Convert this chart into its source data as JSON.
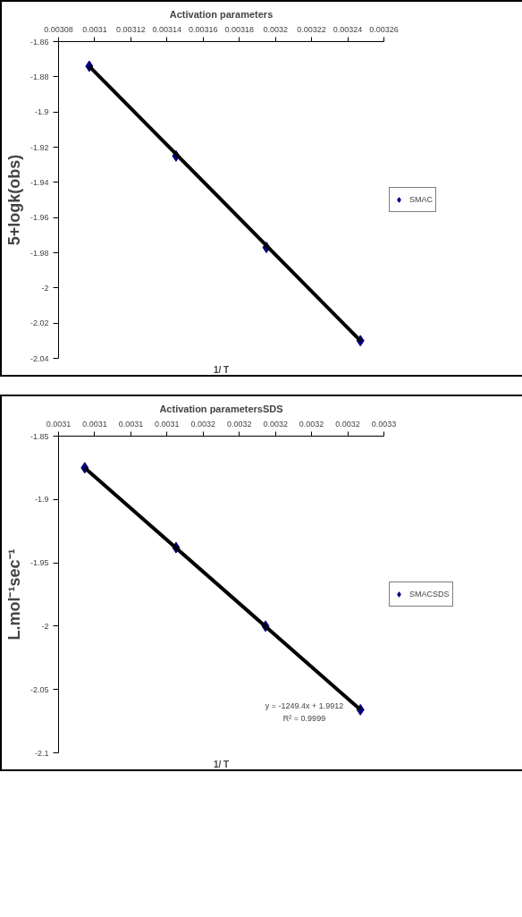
{
  "chart_data": [
    {
      "type": "scatter",
      "title": "Activation parameters",
      "xlabel": "1/ T",
      "ylabel": "5+logk(obs)",
      "xlim": [
        0.00308,
        0.00326
      ],
      "xticks": [
        0.00308,
        0.0031,
        0.00312,
        0.00314,
        0.00316,
        0.00318,
        0.0032,
        0.00322,
        0.00324,
        0.00326
      ],
      "ylim": [
        -2.04,
        -1.86
      ],
      "yticks": [
        -2.04,
        -2.02,
        -2,
        -1.98,
        -1.96,
        -1.94,
        -1.92,
        -1.9,
        -1.88,
        -1.86
      ],
      "grid": false,
      "legend": "right",
      "series": [
        {
          "name": "SMAC",
          "color": "#000080",
          "marker": "diamond",
          "x": [
            0.003097,
            0.003145,
            0.003195,
            0.003247
          ],
          "values": [
            -1.874,
            -1.925,
            -1.977,
            -2.03
          ]
        },
        {
          "type": "line",
          "color": "#000000",
          "x": [
            0.003097,
            0.003247
          ],
          "values": [
            -1.874,
            -2.03
          ]
        }
      ]
    },
    {
      "type": "scatter",
      "title": "Activation parametersSDS",
      "xlabel": "1/ T",
      "ylabel": "L.mol⁻¹sec⁻¹",
      "xlim": [
        0.00308,
        0.00326
      ],
      "xticks": [
        {
          "value": 0.00308,
          "label": "0.0031"
        },
        0.0031,
        {
          "value": 0.00312,
          "label": "0.0031"
        },
        {
          "value": 0.00314,
          "label": "0.0031"
        },
        {
          "value": 0.00316,
          "label": "0.0032"
        },
        {
          "value": 0.00318,
          "label": "0.0032"
        },
        0.0032,
        {
          "value": 0.00322,
          "label": "0.0032"
        },
        {
          "value": 0.00324,
          "label": "0.0032"
        },
        {
          "value": 0.00326,
          "label": "0.0033"
        }
      ],
      "ylim": [
        -2.1,
        -1.85
      ],
      "yticks": [
        -2.1,
        -2.05,
        -2,
        -1.95,
        -1.9,
        -1.85
      ],
      "grid": false,
      "legend": "right",
      "annotations": [
        "y = -1249.4x + 1.9912",
        "R² = 0.9999"
      ],
      "series": [
        {
          "name": "SMACSDS",
          "color": "#000080",
          "marker": "diamond",
          "x": [
            0.0030945,
            0.003145,
            0.0031945,
            0.003247
          ],
          "values": [
            -1.875,
            -1.938,
            -2.0,
            -2.066
          ]
        },
        {
          "type": "line",
          "color": "#000000",
          "x": [
            0.0030945,
            0.003247
          ],
          "values": [
            -1.875,
            -2.066
          ]
        }
      ]
    }
  ]
}
